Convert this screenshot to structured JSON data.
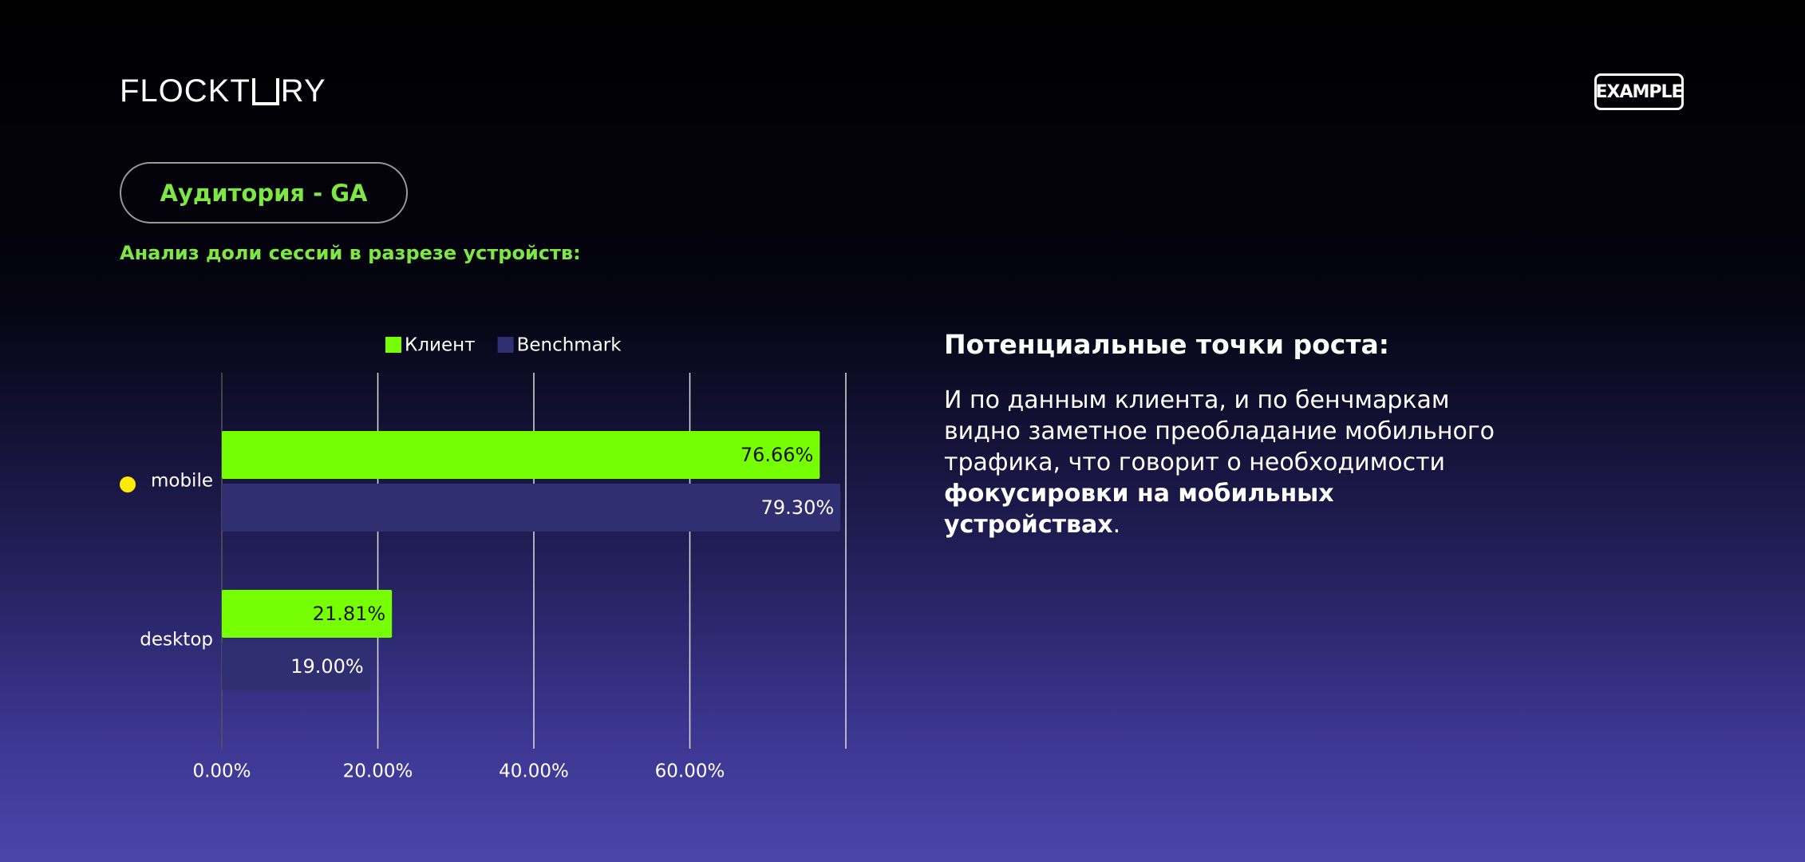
{
  "logo": [
    "FLOCKT",
    "RY"
  ],
  "badge": "EXAMPLE",
  "pill": "Аудитория - GA",
  "subtitle": "Анализ доли сессий в разрезе устройств:",
  "side": {
    "title": "Потенциальные точки роста:",
    "body": [
      "И по данным клиента, и по бенчмаркам видно заметное преобладание мобильного трафика, что говорит о необходимости ",
      "фокусировки на мобильных устройствах",
      "."
    ]
  },
  "chart_data": {
    "type": "bar",
    "orientation": "horizontal",
    "categories": [
      "mobile",
      "desktop"
    ],
    "series": [
      {
        "name": "Клиент",
        "color": "#76ff03",
        "values": [
          76.66,
          21.81
        ],
        "value_labels": [
          "76.66%",
          "21.81%"
        ]
      },
      {
        "name": "Benchmark",
        "color": "#2f2f72",
        "values": [
          79.3,
          19.0
        ],
        "value_labels": [
          "79.30%",
          "19.00%"
        ]
      }
    ],
    "xlim": [
      0,
      80
    ],
    "xticks": [
      {
        "value": 0,
        "label": "0.00%"
      },
      {
        "value": 20,
        "label": "20.00%"
      },
      {
        "value": 40,
        "label": "40.00%"
      },
      {
        "value": 60,
        "label": "60.00%"
      }
    ],
    "grid": true,
    "legend": "top"
  }
}
